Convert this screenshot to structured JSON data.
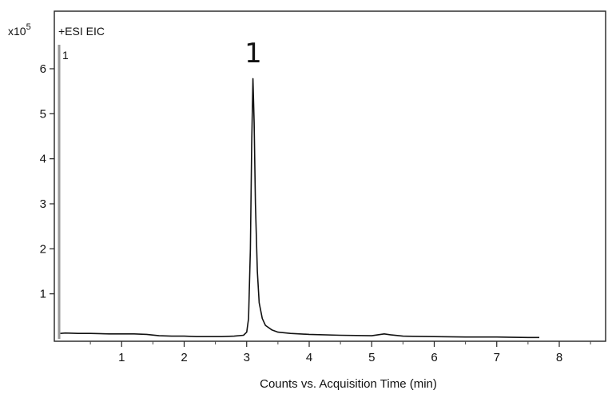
{
  "chart_data": {
    "type": "line",
    "ion_mode_label": "+ESI EIC",
    "y_multiplier": "x10",
    "y_multiplier_exponent": "5",
    "series_index_label": "1",
    "peak_label": "1",
    "xlabel": "Counts vs. Acquisition Time (min)",
    "ylabel": "",
    "xlim": [
      0,
      8.8
    ],
    "ylim": [
      0,
      6.8
    ],
    "x_ticks": [
      1,
      2,
      3,
      4,
      5,
      6,
      7,
      8
    ],
    "y_ticks": [
      1,
      2,
      3,
      4,
      5,
      6
    ],
    "peak": {
      "x": 3.1,
      "y": 5.78
    },
    "series": [
      {
        "x": [
          0.02,
          0.1,
          0.3,
          0.5,
          0.8,
          1.0,
          1.2,
          1.4,
          1.6,
          1.8,
          2.0,
          2.2,
          2.4,
          2.6,
          2.8,
          2.95,
          3.0,
          3.03,
          3.06,
          3.08,
          3.1,
          3.12,
          3.14,
          3.17,
          3.2,
          3.25,
          3.3,
          3.4,
          3.5,
          3.7,
          4.0,
          4.5,
          5.0,
          5.2,
          5.3,
          5.5,
          6.0,
          6.5,
          7.0,
          7.5,
          7.68
        ],
        "y": [
          0.12,
          0.13,
          0.12,
          0.12,
          0.11,
          0.11,
          0.11,
          0.1,
          0.07,
          0.06,
          0.06,
          0.05,
          0.05,
          0.05,
          0.06,
          0.08,
          0.15,
          0.45,
          2.0,
          4.3,
          5.78,
          4.8,
          3.0,
          1.5,
          0.8,
          0.45,
          0.3,
          0.2,
          0.15,
          0.12,
          0.1,
          0.08,
          0.07,
          0.11,
          0.09,
          0.06,
          0.05,
          0.04,
          0.04,
          0.03,
          0.03
        ]
      }
    ],
    "grid": false,
    "colors": {
      "line": "#111111",
      "axis": "#222222"
    }
  }
}
